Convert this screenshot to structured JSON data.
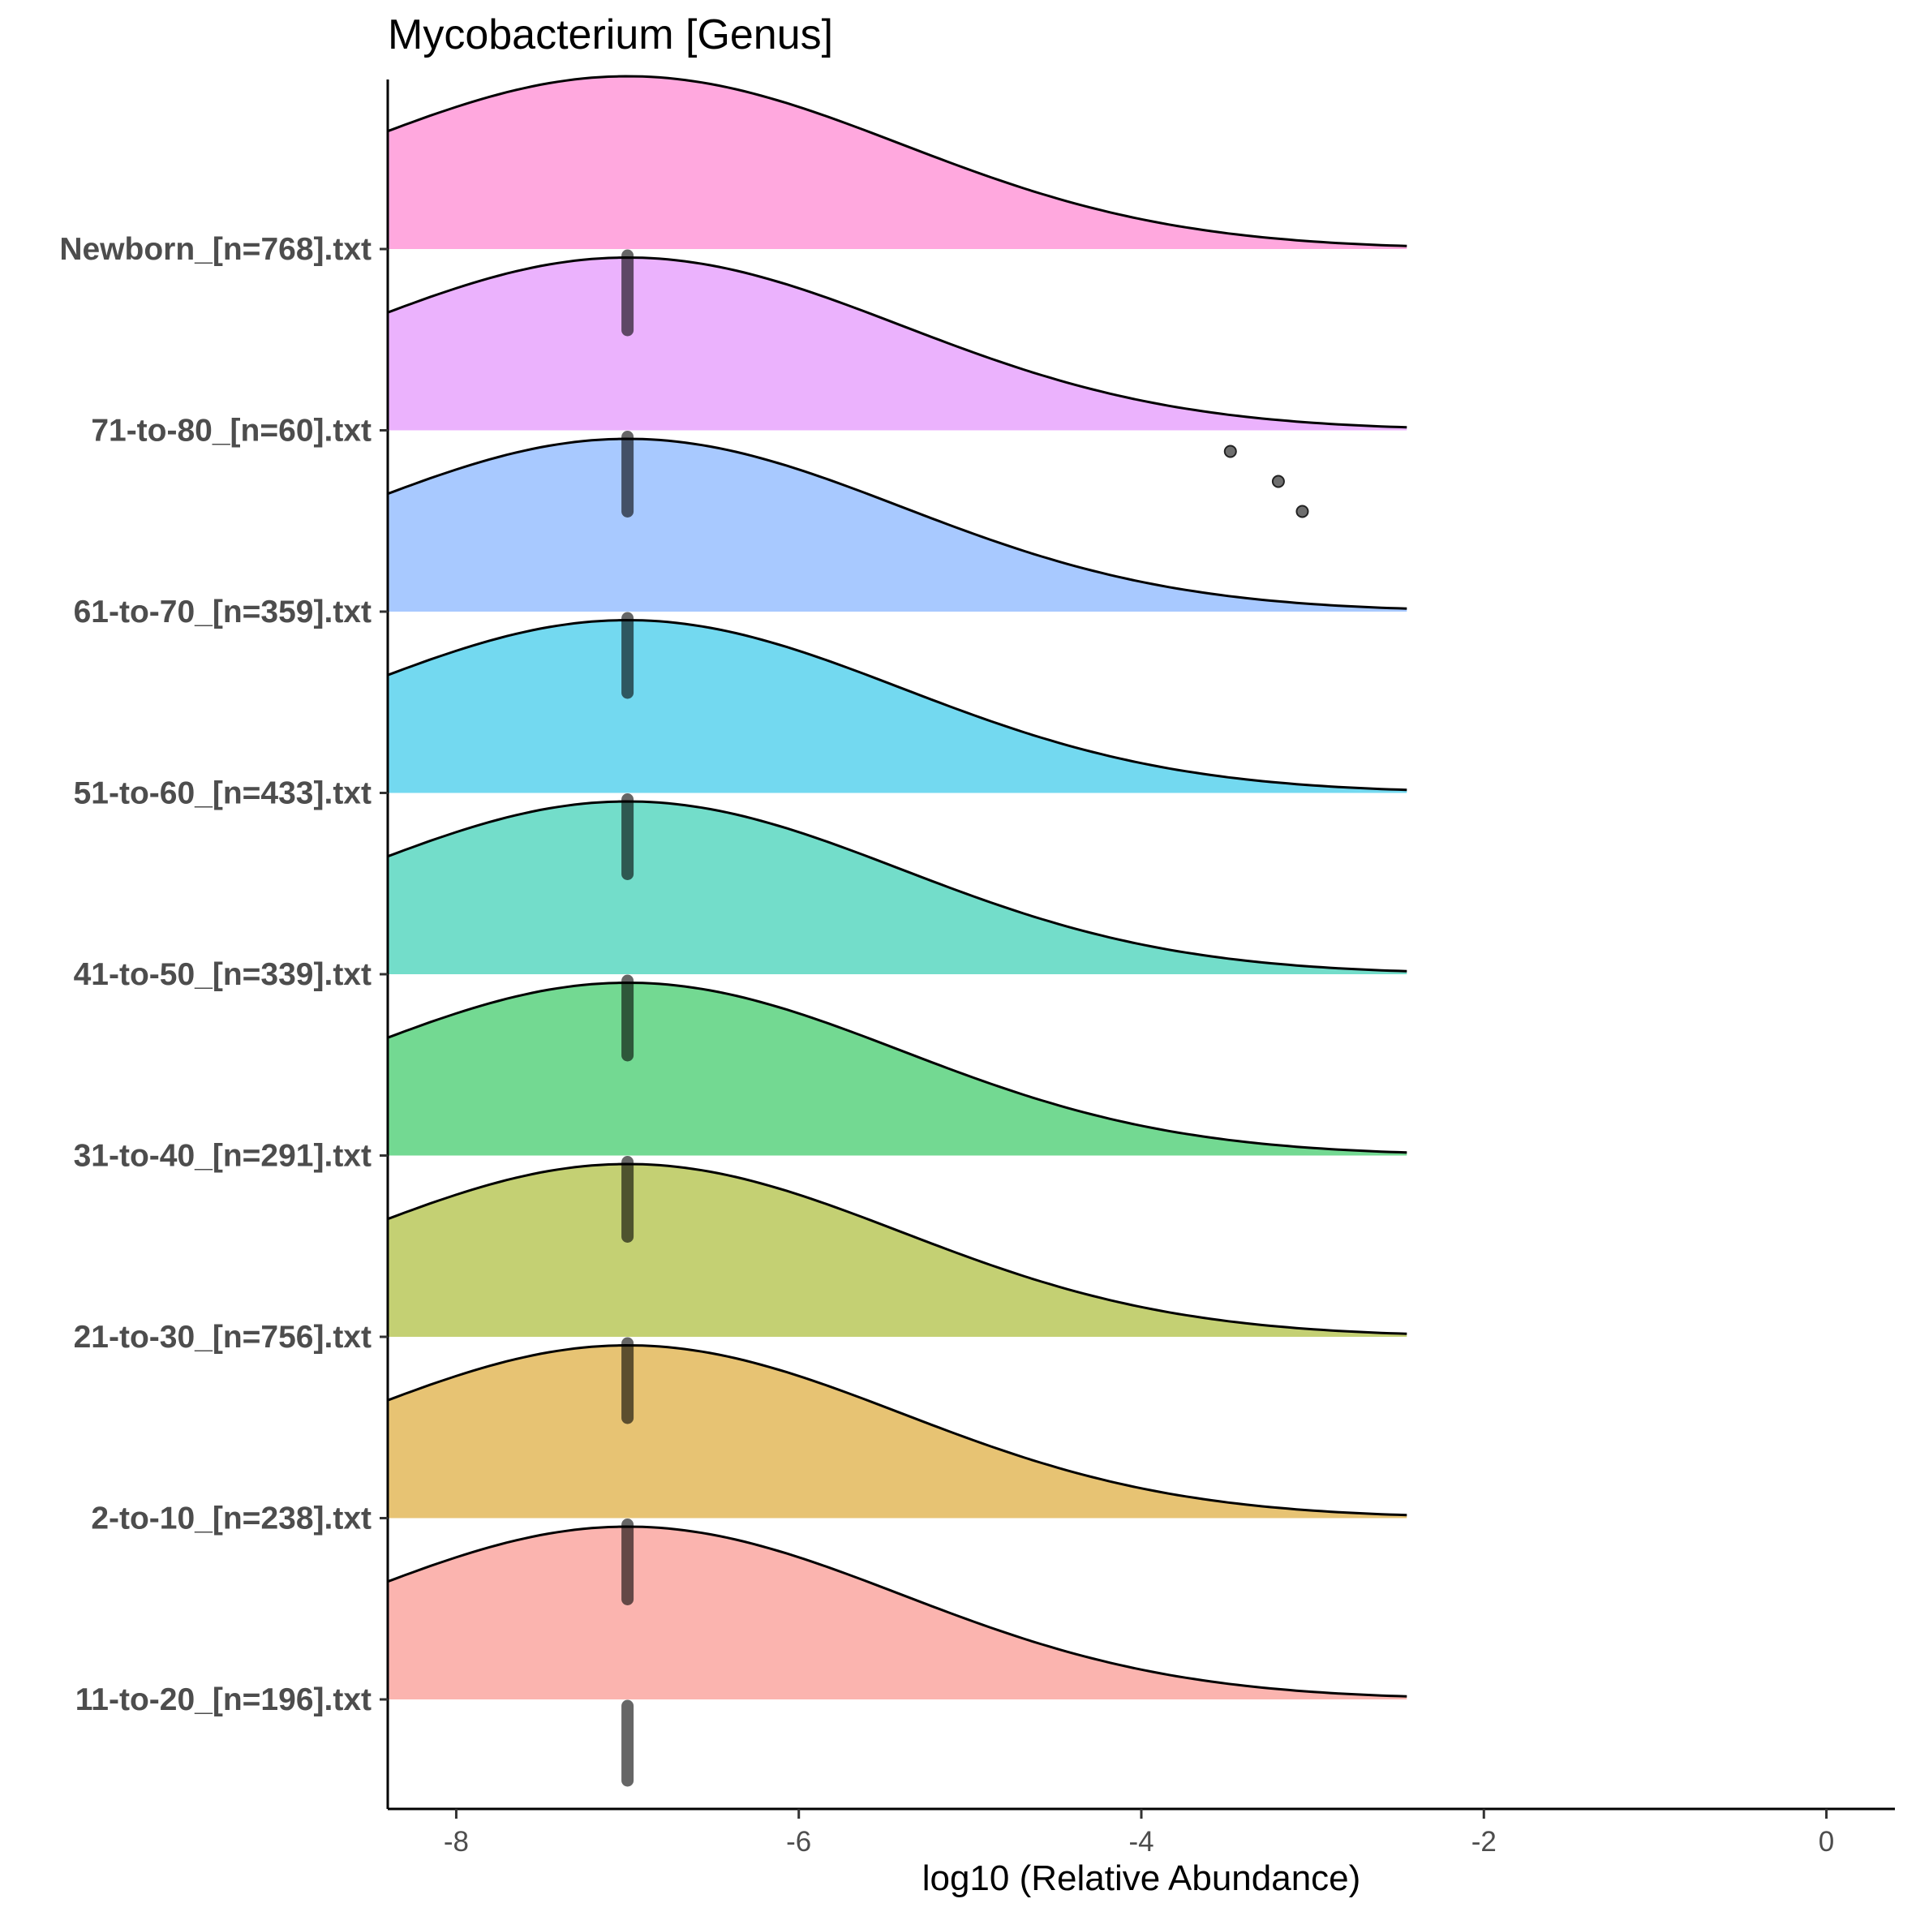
{
  "chart_data": {
    "type": "ridgeline",
    "title": "Mycobacterium [Genus]",
    "xlabel": "log10 (Relative Abundance)",
    "ylabel": "",
    "xlim": [
      -8.4,
      0.4
    ],
    "xticks": [
      -8,
      -6,
      -4,
      -2,
      0
    ],
    "xtick_labels": [
      "-8",
      "-6",
      "-4",
      "-2",
      "0"
    ],
    "density_range": [
      -8.4,
      -2.45
    ],
    "density_mode": -7.0,
    "grid": false,
    "legend": "none",
    "groups": [
      {
        "label": "11-to-20_[n=196].txt",
        "color": "#F8766D",
        "median": -7.0,
        "outliers": []
      },
      {
        "label": "2-to-10_[n=238].txt",
        "color": "#D39200",
        "median": -7.0,
        "outliers": []
      },
      {
        "label": "21-to-30_[n=756].txt",
        "color": "#93AA00",
        "median": -7.0,
        "outliers": []
      },
      {
        "label": "31-to-40_[n=291].txt",
        "color": "#00BA38",
        "median": -7.0,
        "outliers": []
      },
      {
        "label": "41-to-50_[n=339].txt",
        "color": "#00C19F",
        "median": -7.0,
        "outliers": []
      },
      {
        "label": "51-to-60_[n=433].txt",
        "color": "#00B9E3",
        "median": -7.0,
        "outliers": []
      },
      {
        "label": "61-to-70_[n=359].txt",
        "color": "#619CFF",
        "median": -7.0,
        "outliers": []
      },
      {
        "label": "71-to-80_[n=60].txt",
        "color": "#DB72FB",
        "median": -7.0,
        "outliers": [
          -3.48,
          -3.2,
          -3.06
        ]
      },
      {
        "label": "Newborn_[n=768].txt",
        "color": "#FF61C3",
        "median": -7.0,
        "outliers": []
      }
    ]
  }
}
